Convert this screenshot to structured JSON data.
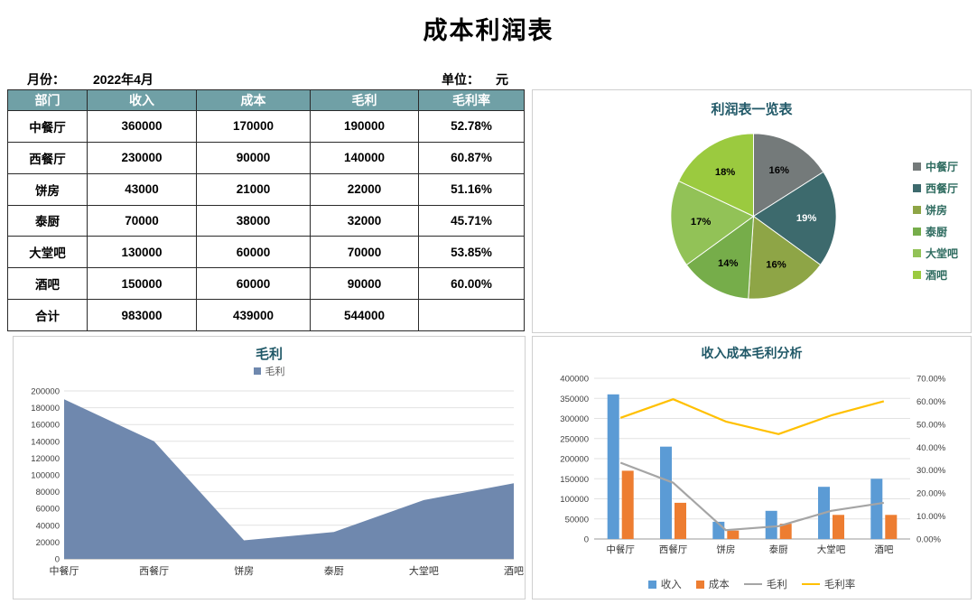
{
  "page": {
    "title": "成本利润表"
  },
  "meta": {
    "month_label": "月份：",
    "month_value": "2022年4月",
    "unit_label": "单位：",
    "unit_value": "元"
  },
  "colors": {
    "table_header_bg": "#70a0a6",
    "chart_title": "#215968",
    "panel_border": "#cfcfcf",
    "pie_legend_text": "#2e6b5f"
  },
  "table": {
    "headers": [
      "部门",
      "收入",
      "成本",
      "毛利",
      "毛利率"
    ],
    "rows": [
      [
        "中餐厅",
        "360000",
        "170000",
        "190000",
        "52.78%"
      ],
      [
        "西餐厅",
        "230000",
        "90000",
        "140000",
        "60.87%"
      ],
      [
        "饼房",
        "43000",
        "21000",
        "22000",
        "51.16%"
      ],
      [
        "泰厨",
        "70000",
        "38000",
        "32000",
        "45.71%"
      ],
      [
        "大堂吧",
        "130000",
        "60000",
        "70000",
        "53.85%"
      ],
      [
        "酒吧",
        "150000",
        "60000",
        "90000",
        "60.00%"
      ],
      [
        "合计",
        "983000",
        "439000",
        "544000",
        ""
      ]
    ]
  },
  "chart_data": [
    {
      "type": "pie",
      "title": "利润表一览表",
      "categories": [
        "中餐厅",
        "西餐厅",
        "饼房",
        "泰厨",
        "大堂吧",
        "酒吧"
      ],
      "values": [
        16,
        19,
        16,
        14,
        17,
        18
      ],
      "value_labels": [
        "16%",
        "19%",
        "16%",
        "14%",
        "17%",
        "18%"
      ],
      "colors": [
        "#747a7a",
        "#3d6a6d",
        "#8ea546",
        "#76ad4a",
        "#92c257",
        "#9bca3f"
      ],
      "label_colors": [
        "#000000",
        "#ffffff",
        "#000000",
        "#000000",
        "#000000",
        "#000000"
      ],
      "legend_position": "right",
      "start_angle_deg": 0,
      "direction": "clockwise"
    },
    {
      "type": "area",
      "title": "毛利",
      "series_name": "毛利",
      "categories": [
        "中餐厅",
        "西餐厅",
        "饼房",
        "泰厨",
        "大堂吧",
        "酒吧"
      ],
      "values": [
        190000,
        140000,
        22000,
        32000,
        70000,
        90000
      ],
      "ylim": [
        0,
        200000
      ],
      "ytick_step": 20000,
      "color": "#6f88ae",
      "grid": true,
      "legend_position": "top"
    },
    {
      "type": "bar+line",
      "title": "收入成本毛利分析",
      "categories": [
        "中餐厅",
        "西餐厅",
        "饼房",
        "泰厨",
        "大堂吧",
        "酒吧"
      ],
      "series": [
        {
          "name": "收入",
          "render": "bar",
          "axis": "left",
          "color": "#5b9bd5",
          "values": [
            360000,
            230000,
            43000,
            70000,
            130000,
            150000
          ]
        },
        {
          "name": "成本",
          "render": "bar",
          "axis": "left",
          "color": "#ed7d31",
          "values": [
            170000,
            90000,
            21000,
            38000,
            60000,
            60000
          ]
        },
        {
          "name": "毛利",
          "render": "line",
          "axis": "left",
          "color": "#a5a5a5",
          "values": [
            190000,
            140000,
            22000,
            32000,
            70000,
            90000
          ]
        },
        {
          "name": "毛利率",
          "render": "line",
          "axis": "right",
          "color": "#ffc000",
          "values": [
            52.78,
            60.87,
            51.16,
            45.71,
            53.85,
            60.0
          ]
        }
      ],
      "left_axis": {
        "min": 0,
        "max": 400000,
        "step": 50000
      },
      "right_axis": {
        "min": 0,
        "max": 70,
        "step": 10,
        "suffix": "%",
        "decimals": 2
      },
      "grid": true,
      "legend_position": "bottom"
    }
  ]
}
